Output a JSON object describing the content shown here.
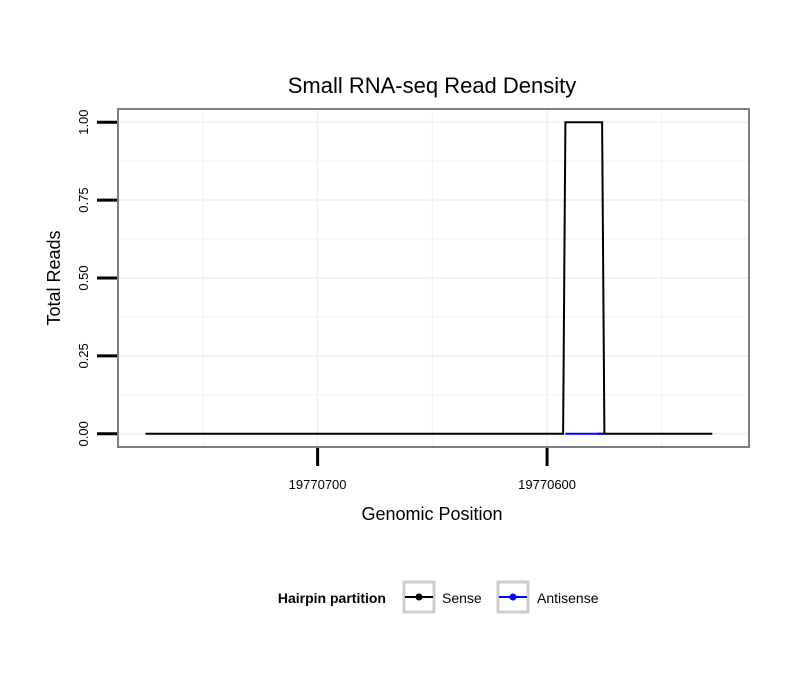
{
  "chart_data": {
    "type": "line",
    "title": "Small RNA-seq Read Density",
    "xlabel": "Genomic Position",
    "ylabel": "Total Reads",
    "x_reversed": true,
    "xlim": [
      19770787,
      19770512
    ],
    "ylim": [
      -0.0425,
      1.0425
    ],
    "x_ticks": [
      19770700,
      19770600
    ],
    "x_tick_labels": [
      "19770700",
      "19770600"
    ],
    "y_ticks": [
      0,
      0.25,
      0.5,
      0.75,
      1
    ],
    "y_tick_labels": [
      "0.00",
      "0.25",
      "0.50",
      "0.75",
      "1.00"
    ],
    "grid": true,
    "legend": {
      "title": "Hairpin partition",
      "position": "bottom"
    },
    "series": [
      {
        "name": "Sense",
        "color": "#000000",
        "x": [
          19770775,
          19770593,
          19770592,
          19770576,
          19770575,
          19770578,
          19770528
        ],
        "y": [
          0,
          0,
          1,
          1,
          0,
          0,
          0
        ]
      },
      {
        "name": "Antisense",
        "color": "#0000ff",
        "x": [
          19770592,
          19770575
        ],
        "y": [
          0,
          0
        ]
      }
    ]
  }
}
